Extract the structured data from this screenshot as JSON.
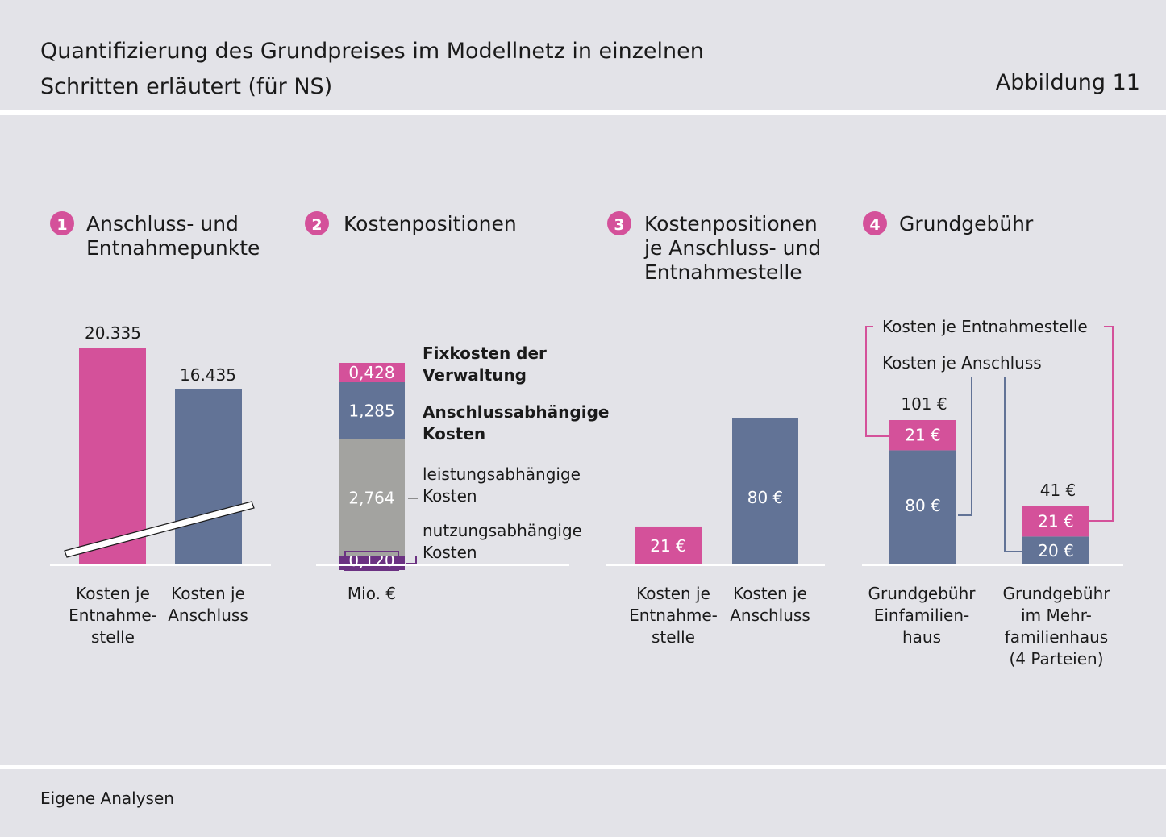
{
  "header": {
    "title": "Quantifizierung des Grundpreises im Modellnetz in einzelnen\nSchritten erläutert (für NS)",
    "figure_label": "Abbildung 11"
  },
  "footer": {
    "source": "Eigene Analysen"
  },
  "colors": {
    "pink": "#d4519a",
    "blue": "#627396",
    "gray": "#a3a3a0",
    "purple": "#6b3182",
    "background": "#e3e3e8"
  },
  "chart_data": [
    {
      "type": "bar",
      "number": "1",
      "title_lines": [
        "Anschluss- und",
        "Entnahmepunkte"
      ],
      "categories": [
        [
          "Kosten je",
          "Entnahme-",
          "stelle"
        ],
        [
          "Kosten je",
          "Anschluss"
        ]
      ],
      "values": [
        20335,
        16435
      ],
      "value_labels": [
        "20.335",
        "16.435"
      ],
      "axis_break": true
    },
    {
      "type": "bar",
      "number": "2",
      "title_lines": [
        "Kostenpositionen"
      ],
      "unit": "Mio. €",
      "stack": [
        {
          "value": 0.12,
          "label": "0,120",
          "name_lines": [
            "nutzungsabhängige",
            "Kosten"
          ],
          "bold": false
        },
        {
          "value": 2.764,
          "label": "2,764",
          "name_lines": [
            "leistungsabhängige",
            "Kosten"
          ],
          "bold": false
        },
        {
          "value": 1.285,
          "label": "1,285",
          "name_lines": [
            "Anschlussabhängige",
            "Kosten"
          ],
          "bold": true
        },
        {
          "value": 0.428,
          "label": "0,428",
          "name_lines": [
            "Fixkosten der",
            "Verwaltung"
          ],
          "bold": true
        }
      ]
    },
    {
      "type": "bar",
      "number": "3",
      "title_lines": [
        "Kostenpositionen",
        "je Anschluss- und",
        "Entnahmestelle"
      ],
      "categories": [
        [
          "Kosten je",
          "Entnahme-",
          "stelle"
        ],
        [
          "Kosten je",
          "Anschluss"
        ]
      ],
      "values": [
        21,
        80
      ],
      "value_labels": [
        "21 €",
        "80 €"
      ]
    },
    {
      "type": "bar",
      "number": "4",
      "title_lines": [
        "Grundgebühr"
      ],
      "categories": [
        [
          "Grundgebühr",
          "Einfamilien-",
          "haus"
        ],
        [
          "Grundgebühr",
          "im Mehr-",
          "familienhaus",
          "(4 Parteien)"
        ]
      ],
      "series": [
        {
          "name": "Kosten je Anschluss",
          "values": [
            80,
            20
          ],
          "labels": [
            "80 €",
            "20 €"
          ]
        },
        {
          "name": "Kosten je Entnahmestelle",
          "values": [
            21,
            21
          ],
          "labels": [
            "21 €",
            "21 €"
          ]
        }
      ],
      "totals": [
        "101 €",
        "41 €"
      ]
    }
  ]
}
